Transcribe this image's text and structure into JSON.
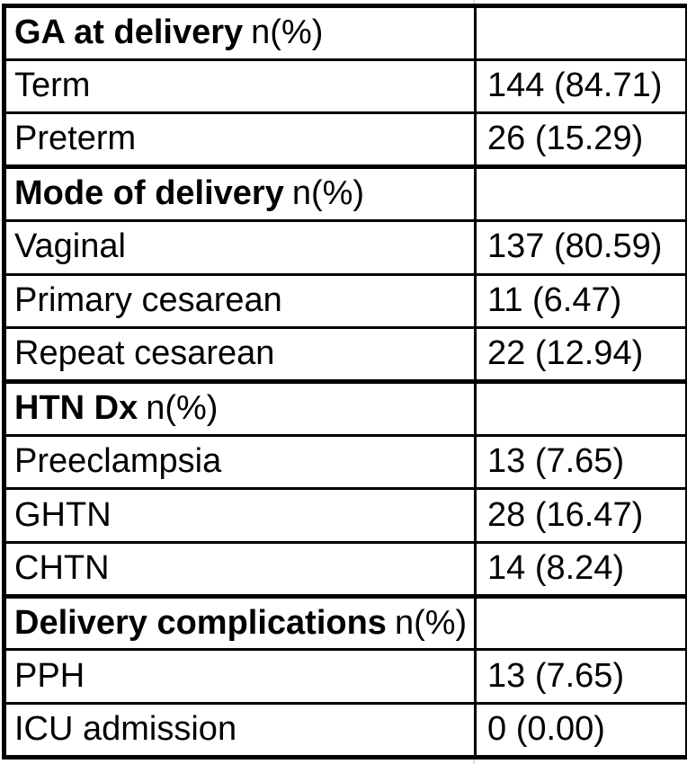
{
  "table": {
    "sections": [
      {
        "header": "GA at delivery",
        "suffix": "n(%)",
        "rows": [
          {
            "label": "Term",
            "value": "144 (84.71)"
          },
          {
            "label": "Preterm",
            "value": "26 (15.29)"
          }
        ]
      },
      {
        "header": "Mode of delivery",
        "suffix": "n(%)",
        "rows": [
          {
            "label": "Vaginal",
            "value": "137 (80.59)"
          },
          {
            "label": "Primary cesarean",
            "value": "11 (6.47)"
          },
          {
            "label": "Repeat cesarean",
            "value": "22 (12.94)"
          }
        ]
      },
      {
        "header": "HTN Dx",
        "suffix": "n(%)",
        "rows": [
          {
            "label": "Preeclampsia",
            "value": "13 (7.65)"
          },
          {
            "label": "GHTN",
            "value": "28 (16.47)"
          },
          {
            "label": "CHTN",
            "value": "14 (8.24)"
          }
        ]
      },
      {
        "header": "Delivery complications",
        "suffix": "n(%)",
        "rows": [
          {
            "label": "PPH",
            "value": "13 (7.65)"
          },
          {
            "label": "ICU admission",
            "value": "0 (0.00)"
          }
        ]
      }
    ]
  },
  "colors": {
    "border": "#000000",
    "text": "#000000",
    "background": "#ffffff",
    "gridline_extension": "#d9d9d9"
  }
}
